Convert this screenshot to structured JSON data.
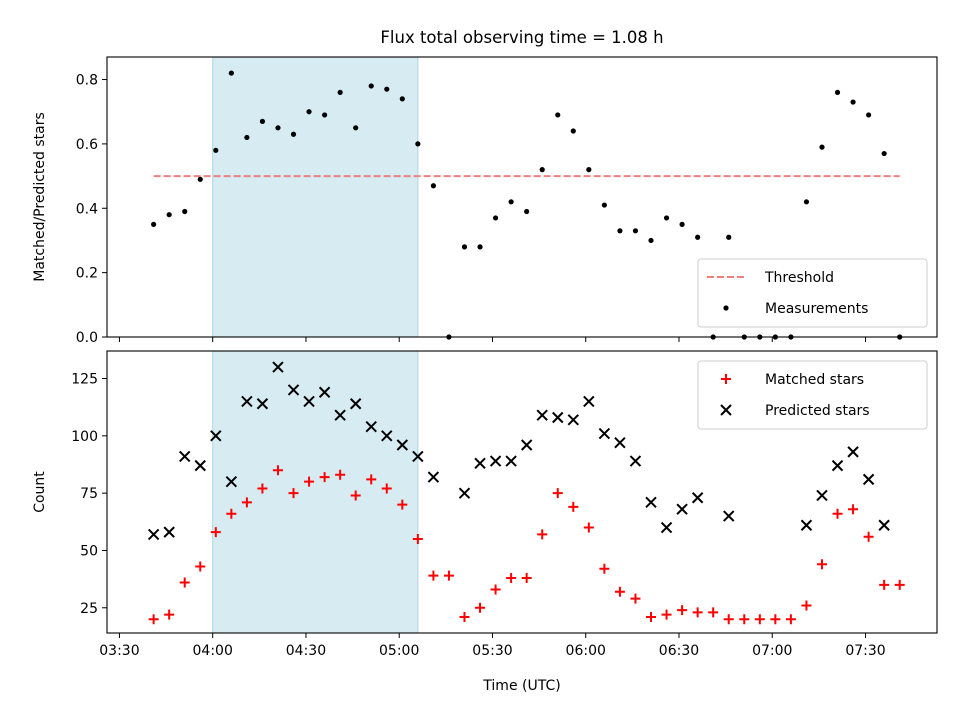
{
  "figure_title": "Flux total observing time = 1.08 h",
  "chart_data": [
    {
      "type": "scatter",
      "ylabel": "Matched/Predicted stars",
      "xlabel": "",
      "ylim": [
        0,
        0.87
      ],
      "xlim": [
        "03:26",
        "07:53"
      ],
      "yticks": [
        "0.0",
        "0.2",
        "0.4",
        "0.6",
        "0.8"
      ],
      "shaded_span": [
        "04:00",
        "05:06"
      ],
      "threshold": {
        "name": "Threshold",
        "y": 0.5,
        "x": [
          "03:41",
          "07:41"
        ],
        "color": "#f08080"
      },
      "legend": {
        "position": "lower-right",
        "entries": [
          "Threshold",
          "Measurements"
        ]
      },
      "series": [
        {
          "name": "Measurements",
          "color": "#000000",
          "x": [
            "03:41",
            "03:46",
            "03:51",
            "03:56",
            "04:01",
            "04:06",
            "04:11",
            "04:16",
            "04:21",
            "04:26",
            "04:31",
            "04:36",
            "04:41",
            "04:46",
            "04:51",
            "04:56",
            "05:01",
            "05:06",
            "05:11",
            "05:16",
            "05:21",
            "05:26",
            "05:31",
            "05:36",
            "05:41",
            "05:46",
            "05:51",
            "05:56",
            "06:01",
            "06:06",
            "06:11",
            "06:16",
            "06:21",
            "06:26",
            "06:31",
            "06:36",
            "06:41",
            "06:46",
            "06:51",
            "06:56",
            "07:01",
            "07:06",
            "07:11",
            "07:16",
            "07:21",
            "07:26",
            "07:31",
            "07:36",
            "07:41"
          ],
          "y": [
            0.35,
            0.38,
            0.39,
            0.49,
            0.58,
            0.82,
            0.62,
            0.67,
            0.65,
            0.63,
            0.7,
            0.69,
            0.76,
            0.65,
            0.78,
            0.77,
            0.74,
            0.6,
            0.47,
            0.0,
            0.28,
            0.28,
            0.37,
            0.42,
            0.39,
            0.52,
            0.69,
            0.64,
            0.52,
            0.41,
            0.33,
            0.33,
            0.3,
            0.37,
            0.35,
            0.31,
            0.0,
            0.31,
            0.0,
            0.0,
            0.0,
            0.0,
            0.42,
            0.59,
            0.76,
            0.73,
            0.69,
            0.57,
            0.0
          ]
        }
      ]
    },
    {
      "type": "scatter",
      "ylabel": "Count",
      "xlabel": "Time (UTC)",
      "ylim": [
        14,
        137
      ],
      "xlim": [
        "03:26",
        "07:53"
      ],
      "yticks": [
        "25",
        "50",
        "75",
        "100",
        "125"
      ],
      "xticks": [
        "03:30",
        "04:00",
        "04:30",
        "05:00",
        "05:30",
        "06:00",
        "06:30",
        "07:00",
        "07:30"
      ],
      "shaded_span": [
        "04:00",
        "05:06"
      ],
      "legend": {
        "position": "upper-right",
        "entries": [
          "Matched stars",
          "Predicted stars"
        ]
      },
      "series": [
        {
          "name": "Matched stars",
          "marker": "plus",
          "color": "#ff0000",
          "x": [
            "03:41",
            "03:46",
            "03:51",
            "03:56",
            "04:01",
            "04:06",
            "04:11",
            "04:16",
            "04:21",
            "04:26",
            "04:31",
            "04:36",
            "04:41",
            "04:46",
            "04:51",
            "04:56",
            "05:01",
            "05:06",
            "05:11",
            "05:16",
            "05:21",
            "05:26",
            "05:31",
            "05:36",
            "05:41",
            "05:46",
            "05:51",
            "05:56",
            "06:01",
            "06:06",
            "06:11",
            "06:16",
            "06:21",
            "06:26",
            "06:31",
            "06:36",
            "06:41",
            "06:46",
            "06:51",
            "06:56",
            "07:01",
            "07:06",
            "07:11",
            "07:16",
            "07:21",
            "07:26",
            "07:31",
            "07:36",
            "07:41"
          ],
          "y": [
            20,
            22,
            36,
            43,
            58,
            66,
            71,
            77,
            85,
            75,
            80,
            82,
            83,
            74,
            81,
            77,
            70,
            55,
            39,
            39,
            21,
            25,
            33,
            38,
            38,
            57,
            75,
            69,
            60,
            42,
            32,
            29,
            21,
            22,
            24,
            23,
            23,
            20,
            20,
            20,
            20,
            20,
            26,
            44,
            66,
            68,
            56,
            35,
            35
          ]
        },
        {
          "name": "Predicted stars",
          "marker": "x",
          "color": "#000000",
          "x": [
            "03:41",
            "03:46",
            "03:51",
            "03:56",
            "04:01",
            "04:06",
            "04:11",
            "04:16",
            "04:21",
            "04:26",
            "04:31",
            "04:36",
            "04:41",
            "04:46",
            "04:51",
            "04:56",
            "05:01",
            "05:06",
            "05:11",
            "05:21",
            "05:26",
            "05:31",
            "05:36",
            "05:41",
            "05:46",
            "05:51",
            "05:56",
            "06:01",
            "06:06",
            "06:11",
            "06:16",
            "06:21",
            "06:26",
            "06:31",
            "06:36",
            "06:46",
            "07:11",
            "07:16",
            "07:21",
            "07:26",
            "07:31",
            "07:36"
          ],
          "y": [
            57,
            58,
            91,
            87,
            100,
            80,
            115,
            114,
            130,
            120,
            115,
            119,
            109,
            114,
            104,
            100,
            96,
            91,
            82,
            75,
            88,
            89,
            89,
            96,
            109,
            108,
            107,
            115,
            101,
            97,
            89,
            71,
            60,
            68,
            73,
            65,
            61,
            74,
            87,
            93,
            81,
            61
          ]
        }
      ]
    }
  ]
}
